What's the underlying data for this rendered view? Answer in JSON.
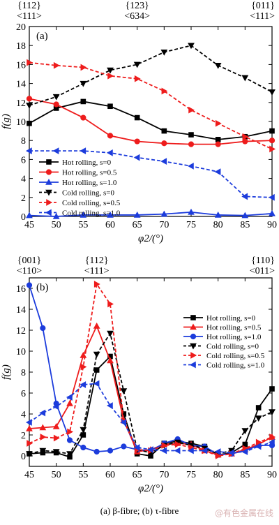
{
  "caption": "(a) β-fibre; (b) τ-fibre",
  "watermark": "@有色金属在线",
  "chart_data": [
    {
      "type": "line",
      "panel_label": "(a)",
      "xlabel": "φ2/(°)",
      "ylabel": "f(g)",
      "xlim": [
        45,
        90
      ],
      "ylim": [
        0,
        20
      ],
      "xticks": [
        45,
        50,
        55,
        60,
        65,
        70,
        75,
        80,
        85,
        90
      ],
      "yticks": [
        0,
        2,
        4,
        6,
        8,
        10,
        12,
        14,
        16,
        18,
        20
      ],
      "top_annotations": [
        {
          "x": 45,
          "top": "{112}",
          "bottom": "<111>"
        },
        {
          "x": 65,
          "top": "{123}",
          "bottom": "<634>"
        },
        {
          "x": 90,
          "top": "{011}",
          "bottom": "<111>"
        }
      ],
      "x": [
        45,
        50,
        55,
        60,
        65,
        70,
        75,
        80,
        85,
        90
      ],
      "legend_position": "bottom-left",
      "series": [
        {
          "name": "Hot rolling, s=0",
          "color": "#000000",
          "dash": "solid",
          "marker": "square",
          "values": [
            9.8,
            11.4,
            12.1,
            11.6,
            10.4,
            9.0,
            8.6,
            8.1,
            8.4,
            9.0
          ]
        },
        {
          "name": "Hot rolling, s=0.5",
          "color": "#ee1c1c",
          "dash": "solid",
          "marker": "circle",
          "values": [
            12.4,
            11.8,
            10.4,
            8.5,
            7.9,
            7.7,
            7.6,
            7.6,
            7.9,
            8.0
          ]
        },
        {
          "name": "Hot rolling, s=1.0",
          "color": "#1c3cdc",
          "dash": "solid",
          "marker": "triangle-up",
          "values": [
            0.1,
            0.0,
            0.15,
            0.15,
            0.15,
            0.25,
            0.45,
            0.15,
            0.1,
            0.3
          ]
        },
        {
          "name": "Cold rolling, s=0",
          "color": "#000000",
          "dash": "dashed",
          "marker": "triangle-down",
          "values": [
            11.7,
            12.6,
            14.0,
            15.4,
            16.0,
            17.3,
            18.0,
            15.9,
            14.6,
            13.1
          ]
        },
        {
          "name": "Cold rolling, s=0.5",
          "color": "#ee1c1c",
          "dash": "dashed",
          "marker": "triangle-right",
          "values": [
            16.2,
            15.9,
            15.7,
            14.8,
            14.5,
            13.2,
            11.2,
            9.8,
            8.4,
            7.1
          ]
        },
        {
          "name": "Cold rolling, s=1.0",
          "color": "#1c3cdc",
          "dash": "dashed",
          "marker": "triangle-left",
          "values": [
            6.9,
            6.9,
            6.9,
            6.7,
            6.2,
            5.8,
            5.3,
            4.7,
            2.1,
            2.0
          ]
        }
      ]
    },
    {
      "type": "line",
      "panel_label": "(b)",
      "xlabel": "φ2/(°)",
      "ylabel": "f(g)",
      "xlim": [
        45,
        90
      ],
      "ylim": [
        -1,
        17
      ],
      "xticks": [
        45,
        50,
        55,
        60,
        65,
        70,
        75,
        80,
        85,
        90
      ],
      "yticks": [
        0,
        2,
        4,
        6,
        8,
        10,
        12,
        14,
        16
      ],
      "top_annotations": [
        {
          "x": 45,
          "top": "{001}",
          "bottom": "<110>"
        },
        {
          "x": 57.5,
          "top": "{112}",
          "bottom": "<111>"
        },
        {
          "x": 90,
          "top": "{110}",
          "bottom": "<011>"
        }
      ],
      "x": [
        45,
        47.5,
        50,
        52.5,
        55,
        57.5,
        60,
        62.5,
        65,
        67.5,
        70,
        72.5,
        75,
        77.5,
        80,
        82.5,
        85,
        87.5,
        90
      ],
      "legend_position": "top-right",
      "series": [
        {
          "name": "Hot rolling, s=0",
          "color": "#000000",
          "dash": "solid",
          "marker": "square",
          "values": [
            0.2,
            0.3,
            0.3,
            -0.1,
            2.0,
            8.2,
            9.5,
            4.0,
            0.2,
            0.0,
            1.2,
            1.4,
            1.2,
            0.9,
            0.1,
            0.3,
            1.1,
            4.6,
            6.4
          ]
        },
        {
          "name": "Hot rolling, s=0.5",
          "color": "#ee1c1c",
          "dash": "solid",
          "marker": "triangle-up",
          "values": [
            2.6,
            2.7,
            2.8,
            5.0,
            9.6,
            12.4,
            9.1,
            3.4,
            0.4,
            0.6,
            1.1,
            1.2,
            1.1,
            0.5,
            0.1,
            0.2,
            0.6,
            1.1,
            1.8
          ]
        },
        {
          "name": "Hot rolling, s=1.0",
          "color": "#1c3cdc",
          "dash": "solid",
          "marker": "circle",
          "values": [
            16.3,
            12.2,
            5.0,
            1.5,
            0.8,
            0.4,
            0.5,
            0.9,
            0.6,
            0.5,
            1.2,
            1.6,
            1.0,
            0.9,
            0.1,
            0.2,
            0.5,
            1.0,
            1.0
          ]
        },
        {
          "name": "Cold rolling, s=0",
          "color": "#000000",
          "dash": "dashed",
          "marker": "triangle-down",
          "values": [
            0.2,
            0.5,
            0.4,
            0.2,
            2.5,
            9.7,
            11.7,
            6.2,
            0.6,
            0.3,
            1.0,
            1.3,
            1.0,
            0.7,
            0.2,
            0.5,
            2.4,
            3.6,
            4.2
          ]
        },
        {
          "name": "Cold rolling, s=0.5",
          "color": "#ee1c1c",
          "dash": "dashed",
          "marker": "triangle-right",
          "values": [
            1.2,
            1.8,
            1.7,
            2.3,
            8.5,
            16.4,
            14.5,
            3.4,
            0.6,
            0.5,
            1.0,
            1.1,
            0.8,
            0.5,
            0.0,
            0.2,
            0.7,
            1.3,
            1.8
          ]
        },
        {
          "name": "Cold rolling, s=1.0",
          "color": "#1c3cdc",
          "dash": "dashed",
          "marker": "triangle-left",
          "values": [
            3.2,
            4.1,
            4.7,
            5.6,
            6.8,
            6.9,
            4.8,
            3.2,
            0.8,
            0.6,
            0.5,
            0.5,
            0.5,
            0.5,
            0.4,
            0.3,
            0.4,
            0.9,
            1.3
          ]
        }
      ]
    }
  ]
}
